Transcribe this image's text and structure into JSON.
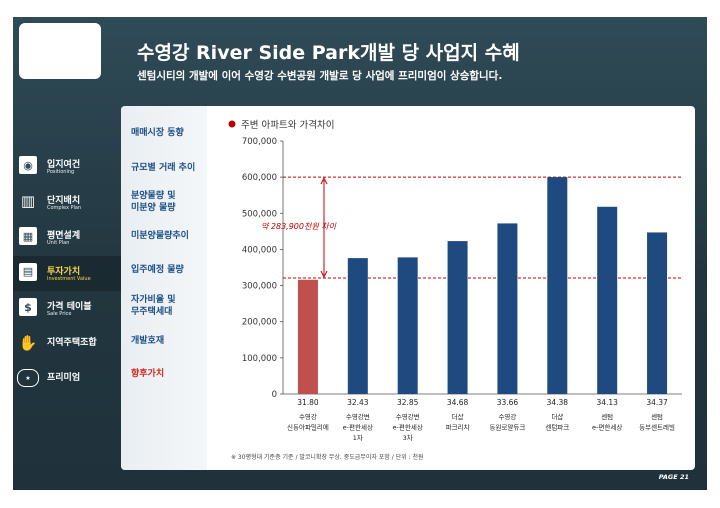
{
  "header": {
    "title": "수영강 River Side Park개발 당 사업지 수혜",
    "subtitle": "센텀시티의 개발에 이어 수영강 수변공원 개발로 당 사업에 프리미엄이 상승합니다."
  },
  "side_menu": [
    {
      "label": "입지여건",
      "sub": "Positioning",
      "icon": "location-icon",
      "active": false
    },
    {
      "label": "단지배치",
      "sub": "Complex Plan",
      "icon": "building-icon",
      "active": false
    },
    {
      "label": "평면설계",
      "sub": "Unit Plan",
      "icon": "floorplan-icon",
      "active": false
    },
    {
      "label": "투자가치",
      "sub": "Investment Value",
      "icon": "chart-icon",
      "active": true
    },
    {
      "label": "가격 테이블",
      "sub": "Sale Price",
      "icon": "price-tag-icon",
      "active": false
    },
    {
      "label": "지역주택조합",
      "sub": "",
      "icon": "handshake-icon",
      "active": false
    },
    {
      "label": "프리미엄",
      "sub": "",
      "icon": "premium-badge-icon",
      "active": false
    }
  ],
  "sub_menu": [
    {
      "label": "매매시장 동향",
      "active": false
    },
    {
      "label": "규모별 거래 추이",
      "active": false
    },
    {
      "label": "분양물량 및\n미분양 물량",
      "active": false
    },
    {
      "label": "미분양물량추이",
      "active": false
    },
    {
      "label": "입주예정 물량",
      "active": false
    },
    {
      "label": "자가비율 및\n무주택세대",
      "active": false
    },
    {
      "label": "개발호재",
      "active": false
    },
    {
      "label": "향후가치",
      "active": true
    }
  ],
  "colors": {
    "bar": "#1f4a7f",
    "highlight_bar": "#c0504d",
    "guide_line": "#c00000",
    "legend_dot": "#c00000"
  },
  "chart_data": {
    "type": "bar",
    "legend": "주변 아파트와 가격차이",
    "ylim": [
      0,
      700000
    ],
    "yticks": [
      "0",
      "100,000",
      "200,000",
      "300,000",
      "400,000",
      "500,000",
      "600,000",
      "700,000"
    ],
    "ytick_values": [
      0,
      100000,
      200000,
      300000,
      400000,
      500000,
      600000,
      700000
    ],
    "grid": false,
    "bars": [
      {
        "value": 316000,
        "label": "31.80",
        "name": [
          "수영강",
          "신동아파밀리에"
        ],
        "highlight": true
      },
      {
        "value": 376000,
        "label": "32.43",
        "name": [
          "수영강변",
          "e-편한세상",
          "1차"
        ],
        "highlight": false
      },
      {
        "value": 378000,
        "label": "32.85",
        "name": [
          "수영강변",
          "e-편한세상",
          "3차"
        ],
        "highlight": false
      },
      {
        "value": 423000,
        "label": "34.68",
        "name": [
          "더샵",
          "파크리치"
        ],
        "highlight": false
      },
      {
        "value": 472000,
        "label": "33.66",
        "name": [
          "수영강",
          "동원로얄듀크"
        ],
        "highlight": false
      },
      {
        "value": 600000,
        "label": "34.38",
        "name": [
          "더샵",
          "센텀파크"
        ],
        "highlight": false
      },
      {
        "value": 518000,
        "label": "34.13",
        "name": [
          "센텀",
          "e-편한세상"
        ],
        "highlight": false
      },
      {
        "value": 447000,
        "label": "34.37",
        "name": [
          "센텀",
          "동부센트레빌"
        ],
        "highlight": false
      }
    ],
    "reference_lines": [
      600000,
      321000
    ],
    "annotation": "약 283,900천원 차이",
    "footnote": "※ 30평형대 기준층 기준 / 발코니확장 무상, 중도금무이자 포함 / 단위 : 천원"
  },
  "page": "PAGE 21"
}
